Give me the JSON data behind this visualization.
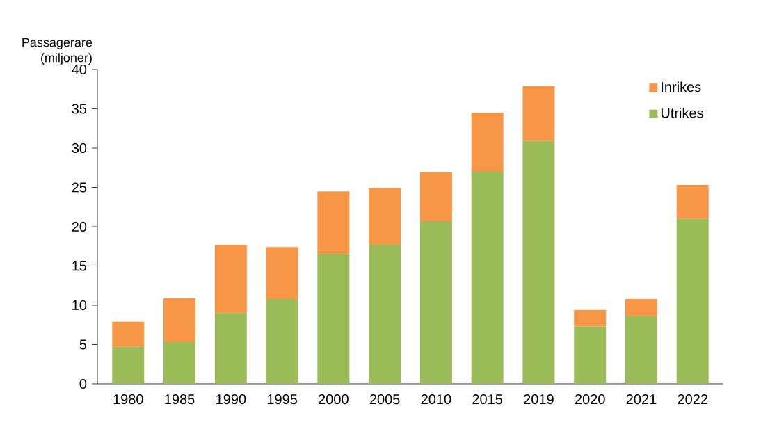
{
  "chart_data": {
    "type": "bar",
    "stacked": true,
    "ylabel": "Passagerare (miljoner)",
    "categories": [
      "1980",
      "1985",
      "1990",
      "1995",
      "2000",
      "2005",
      "2010",
      "2015",
      "2019",
      "2020",
      "2021",
      "2022"
    ],
    "series": [
      {
        "name": "Utrikes",
        "color": "#9bbb59",
        "values": [
          4.7,
          5.3,
          9.0,
          10.8,
          16.5,
          17.7,
          20.7,
          27.0,
          30.9,
          7.3,
          8.6,
          21.0
        ]
      },
      {
        "name": "Inrikes",
        "color": "#f79646",
        "values": [
          3.2,
          5.6,
          8.7,
          6.6,
          8.0,
          7.2,
          6.2,
          7.5,
          7.0,
          2.1,
          2.2,
          4.3
        ]
      }
    ],
    "ylim": [
      0,
      40
    ],
    "yticks": [
      0,
      5,
      10,
      15,
      20,
      25,
      30,
      35,
      40
    ],
    "grid": false,
    "legend": "top right"
  }
}
